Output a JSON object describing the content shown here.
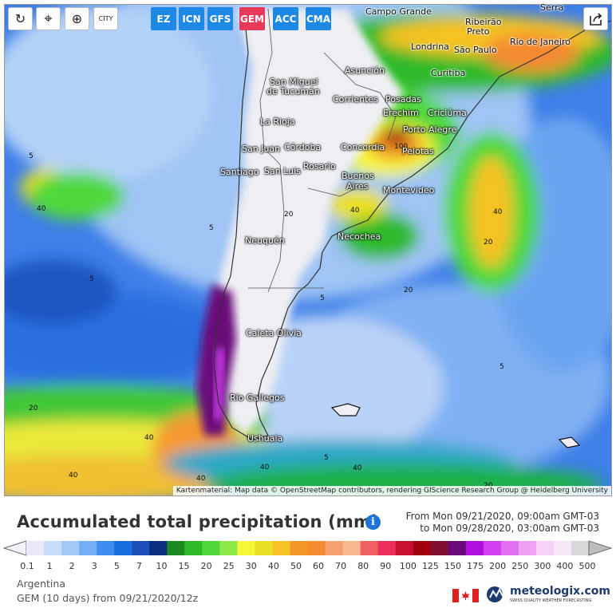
{
  "toolbar": {
    "tools": [
      {
        "name": "refresh-button",
        "glyph": "↻"
      },
      {
        "name": "location-button",
        "glyph": "⌖"
      },
      {
        "name": "zoom-button",
        "glyph": "⊕"
      },
      {
        "name": "city-toggle-button",
        "glyph": "CITY"
      }
    ],
    "models": [
      {
        "label": "EZ",
        "active": false
      },
      {
        "label": "ICN",
        "active": false
      },
      {
        "label": "GFS",
        "active": false
      },
      {
        "label": "GEM",
        "active": true
      },
      {
        "label": "ACC",
        "active": false
      },
      {
        "label": "CMA",
        "active": false
      }
    ],
    "share_icon": "share-icon"
  },
  "map": {
    "cities": [
      {
        "name": "Campo Grande"
      },
      {
        "name": "Ribeirão"
      },
      {
        "name": "Preto"
      },
      {
        "name": "Serra"
      },
      {
        "name": "Londrina"
      },
      {
        "name": "São Paulo"
      },
      {
        "name": "Rio de Janeiro"
      },
      {
        "name": "Asunción"
      },
      {
        "name": "Curitiba"
      },
      {
        "name": "San Miguel"
      },
      {
        "name": "de Tucumán"
      },
      {
        "name": "Corrientes"
      },
      {
        "name": "Posadas"
      },
      {
        "name": "Erechim"
      },
      {
        "name": "Criciúma"
      },
      {
        "name": "La Rioja"
      },
      {
        "name": "Porto Alegre"
      },
      {
        "name": "San Juan"
      },
      {
        "name": "Córdoba"
      },
      {
        "name": "Concordia"
      },
      {
        "name": "Pelotas"
      },
      {
        "name": "Santiago"
      },
      {
        "name": "San Luis"
      },
      {
        "name": "Rosario"
      },
      {
        "name": "Buenos"
      },
      {
        "name": "Aires"
      },
      {
        "name": "Montevideo"
      },
      {
        "name": "Neuquén"
      },
      {
        "name": "Necochea"
      },
      {
        "name": "Caleta Olivia"
      },
      {
        "name": "Río Gallegos"
      },
      {
        "name": "Ushuaia"
      }
    ],
    "contour_labels": [
      "5",
      "20",
      "40",
      "100"
    ],
    "attribution": "Kartenmaterial: Map data © OpenStreetMap contributors, rendering GIScience Research Group @ Heidelberg University"
  },
  "header": {
    "title": "Accumulated total precipitation (mm)",
    "info_icon": "info-icon",
    "from": "From Mon 09/21/2020, 09:00am GMT-03",
    "to": "to Mon 09/28/2020, 03:00am GMT-03"
  },
  "legend": {
    "colors": [
      "#ece8f7",
      "#c8dcf8",
      "#a3c8f7",
      "#74aef5",
      "#3f8df0",
      "#1a6fe0",
      "#1d4fb8",
      "#0c2f80",
      "#1d8a1f",
      "#2fba2a",
      "#4fd83a",
      "#8ee84a",
      "#f7f73a",
      "#e8e022",
      "#f4c224",
      "#f29a25",
      "#f58a30",
      "#f7a070",
      "#f7b890",
      "#f06060",
      "#e8305a",
      "#c81030",
      "#a00010",
      "#801030",
      "#6a0a7a",
      "#b010e0",
      "#d040f0",
      "#e070f0",
      "#f0a0f0",
      "#f7d0f7",
      "#f7e8f7",
      "#d8d8d8"
    ],
    "ticks": [
      "0.1",
      "1",
      "2",
      "3",
      "5",
      "7",
      "10",
      "15",
      "20",
      "25",
      "30",
      "40",
      "50",
      "60",
      "70",
      "80",
      "90",
      "100",
      "125",
      "150",
      "175",
      "200",
      "250",
      "300",
      "400",
      "500"
    ]
  },
  "footer": {
    "region": "Argentina",
    "run": "GEM (10 days) from 09/21/2020/12z",
    "brand": "meteologix.com",
    "tagline": "SWISS QUALITY WEATHER FORECASTING",
    "flag_icon": "canada-flag-icon",
    "logo_icon": "meteologix-logo-icon"
  }
}
